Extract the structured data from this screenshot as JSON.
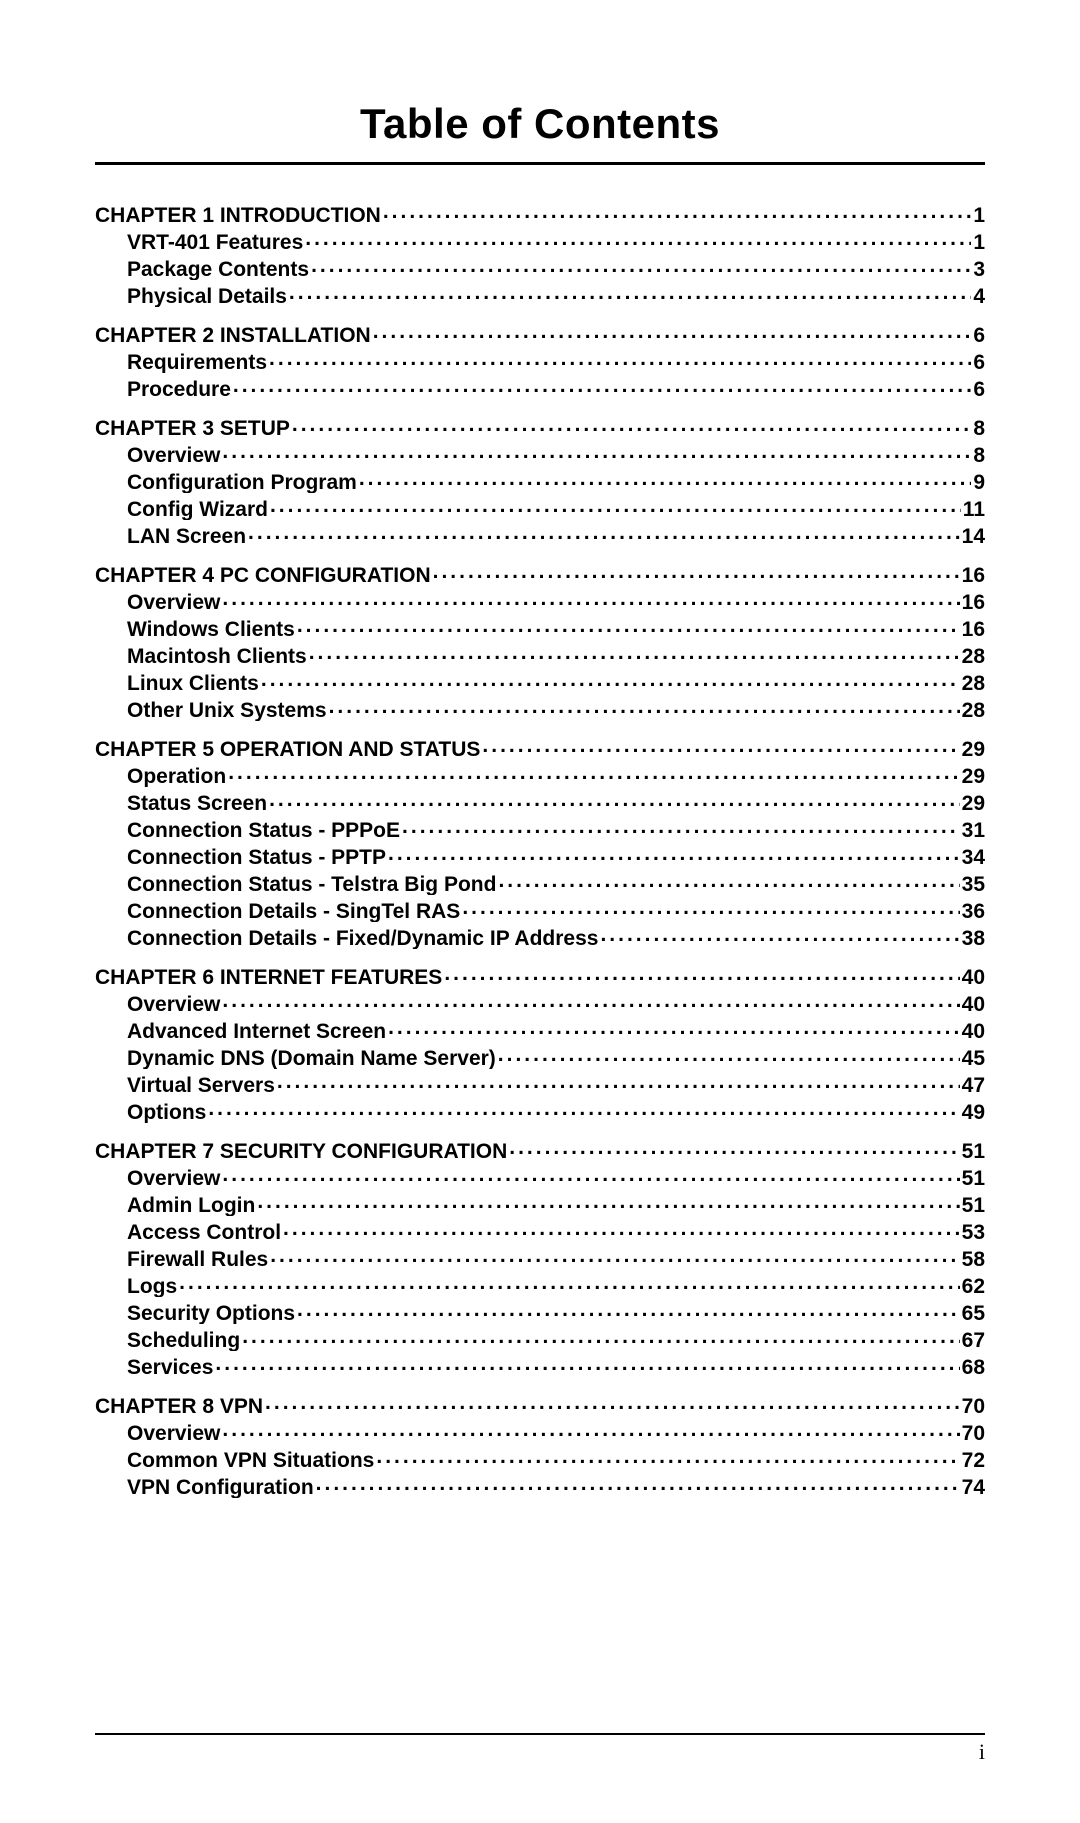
{
  "title": "Table of Contents",
  "page_number": "i",
  "colors": {
    "text": "#000000",
    "background": "#ffffff",
    "rule": "#000000"
  },
  "typography": {
    "title_fontsize_pt": 32,
    "body_fontsize_pt": 16,
    "font_family": "Arial",
    "footer_font_family": "Times New Roman"
  },
  "entries": [
    {
      "level": 0,
      "label": "CHAPTER 1 INTRODUCTION",
      "page": "1"
    },
    {
      "level": 1,
      "label": "VRT-401 Features",
      "page": "1"
    },
    {
      "level": 1,
      "label": "Package Contents",
      "page": "3"
    },
    {
      "level": 1,
      "label": "Physical Details",
      "page": "4"
    },
    {
      "level": 0,
      "label": "CHAPTER 2 INSTALLATION",
      "page": "6"
    },
    {
      "level": 1,
      "label": "Requirements",
      "page": "6"
    },
    {
      "level": 1,
      "label": "Procedure",
      "page": "6"
    },
    {
      "level": 0,
      "label": "CHAPTER 3 SETUP",
      "page": "8"
    },
    {
      "level": 1,
      "label": "Overview",
      "page": "8"
    },
    {
      "level": 1,
      "label": "Configuration Program",
      "page": "9"
    },
    {
      "level": 1,
      "label": "Config Wizard",
      "page": "11"
    },
    {
      "level": 1,
      "label": "LAN Screen",
      "page": "14"
    },
    {
      "level": 0,
      "label": "CHAPTER 4 PC CONFIGURATION",
      "page": "16"
    },
    {
      "level": 1,
      "label": "Overview",
      "page": "16"
    },
    {
      "level": 1,
      "label": "Windows Clients",
      "page": "16"
    },
    {
      "level": 1,
      "label": "Macintosh Clients",
      "page": "28"
    },
    {
      "level": 1,
      "label": "Linux Clients",
      "page": "28"
    },
    {
      "level": 1,
      "label": "Other Unix Systems",
      "page": "28"
    },
    {
      "level": 0,
      "label": "CHAPTER 5 OPERATION AND STATUS",
      "page": "29"
    },
    {
      "level": 1,
      "label": "Operation",
      "page": "29"
    },
    {
      "level": 1,
      "label": "Status Screen",
      "page": "29"
    },
    {
      "level": 1,
      "label": "Connection Status - PPPoE",
      "page": "31"
    },
    {
      "level": 1,
      "label": "Connection Status - PPTP",
      "page": "34"
    },
    {
      "level": 1,
      "label": "Connection Status - Telstra Big Pond",
      "page": "35"
    },
    {
      "level": 1,
      "label": "Connection Details - SingTel RAS",
      "page": "36"
    },
    {
      "level": 1,
      "label": "Connection Details - Fixed/Dynamic IP Address",
      "page": "38"
    },
    {
      "level": 0,
      "label": "CHAPTER 6 INTERNET FEATURES",
      "page": "40"
    },
    {
      "level": 1,
      "label": "Overview",
      "page": "40"
    },
    {
      "level": 1,
      "label": "Advanced Internet Screen",
      "page": "40"
    },
    {
      "level": 1,
      "label": "Dynamic DNS (Domain Name Server)",
      "page": "45"
    },
    {
      "level": 1,
      "label": "Virtual Servers",
      "page": "47"
    },
    {
      "level": 1,
      "label": "Options",
      "page": "49"
    },
    {
      "level": 0,
      "label": "CHAPTER 7 SECURITY CONFIGURATION",
      "page": "51"
    },
    {
      "level": 1,
      "label": "Overview",
      "page": "51"
    },
    {
      "level": 1,
      "label": "Admin Login",
      "page": "51"
    },
    {
      "level": 1,
      "label": "Access Control",
      "page": "53"
    },
    {
      "level": 1,
      "label": "Firewall Rules",
      "page": "58"
    },
    {
      "level": 1,
      "label": "Logs",
      "page": "62"
    },
    {
      "level": 1,
      "label": "Security Options",
      "page": "65"
    },
    {
      "level": 1,
      "label": "Scheduling",
      "page": "67"
    },
    {
      "level": 1,
      "label": "Services",
      "page": "68"
    },
    {
      "level": 0,
      "label": "CHAPTER 8 VPN",
      "page": "70"
    },
    {
      "level": 1,
      "label": "Overview",
      "page": "70"
    },
    {
      "level": 1,
      "label": "Common VPN Situations",
      "page": "72"
    },
    {
      "level": 1,
      "label": "VPN Configuration",
      "page": "74"
    }
  ]
}
